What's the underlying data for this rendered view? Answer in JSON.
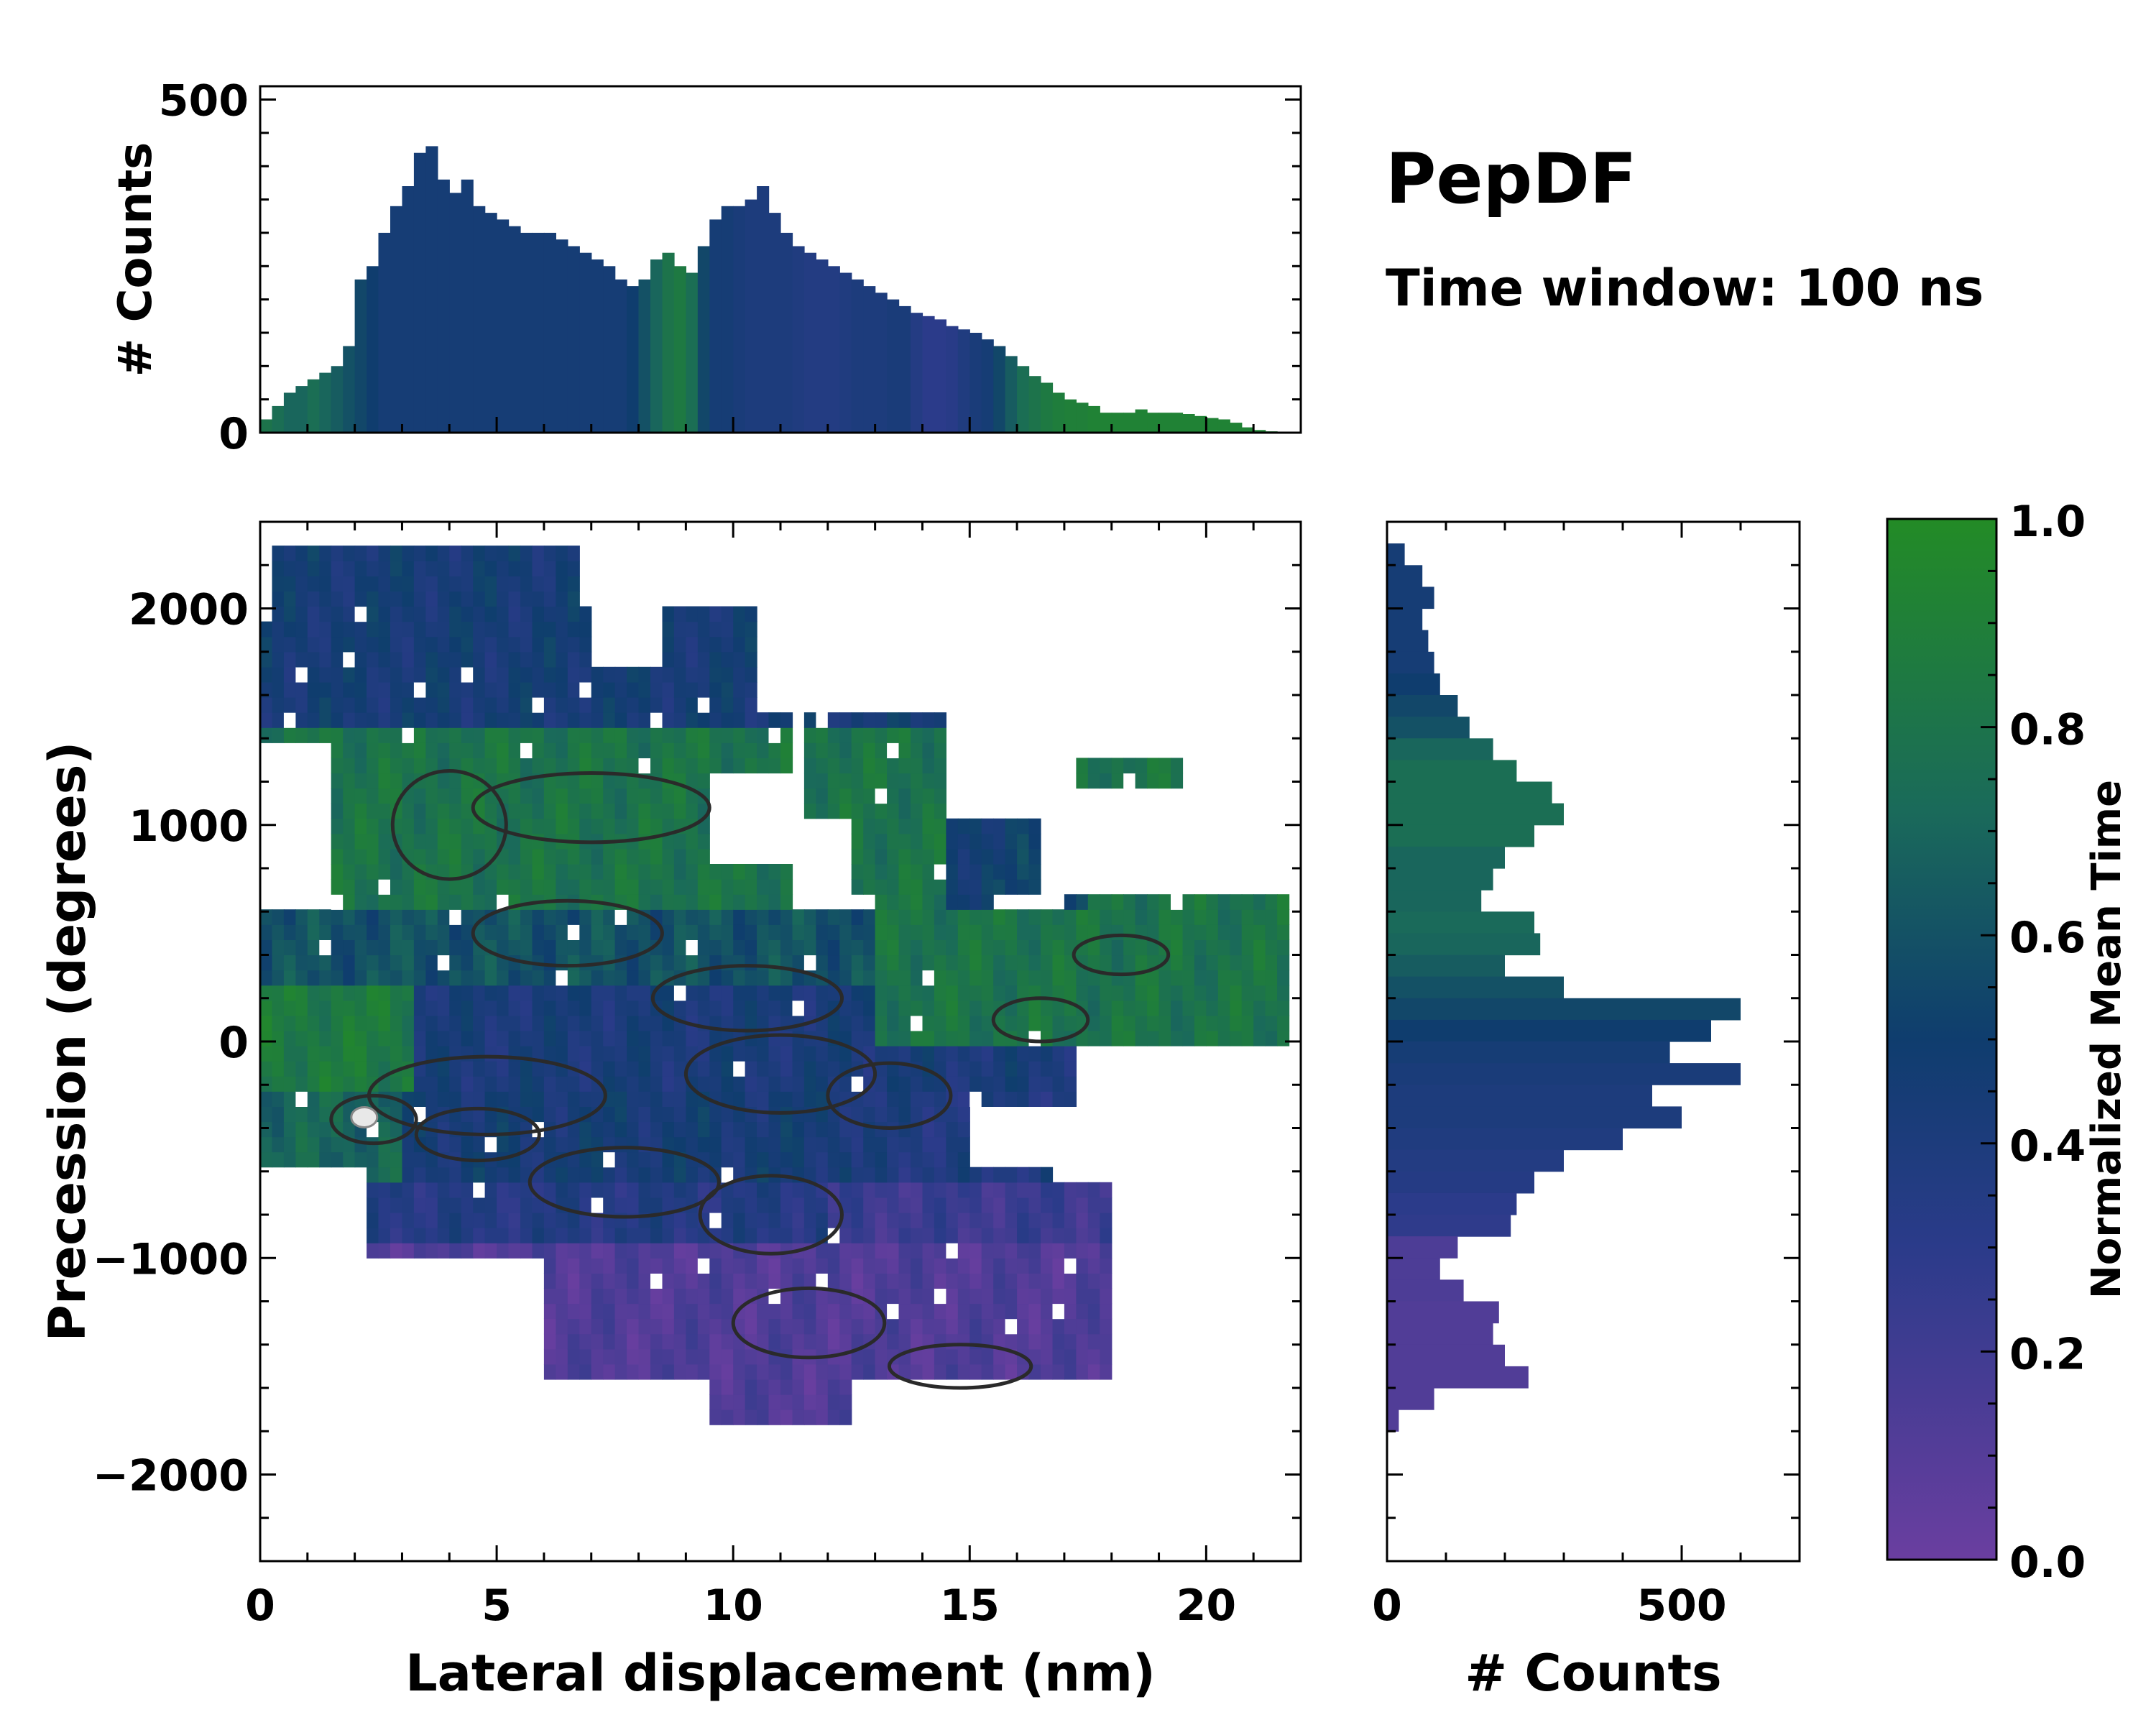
{
  "chart_data": [
    {
      "id": "joint",
      "type": "heatmap",
      "xlabel": "Lateral displacement (nm)",
      "ylabel": "Precession (degrees)",
      "xlim": [
        0,
        22
      ],
      "ylim": [
        -2400,
        2400
      ],
      "xticks": [
        0,
        5,
        10,
        15,
        20
      ],
      "xtick_labels": [
        "0",
        "5",
        "10",
        "15",
        "20"
      ],
      "yticks": [
        -2000,
        -1000,
        0,
        1000,
        2000
      ],
      "ytick_labels": [
        "−2000",
        "−1000",
        "0",
        "1000",
        "2000"
      ],
      "regions": [
        {
          "name": "upper-left blob",
          "x": [
            0,
            10.5
          ],
          "y": [
            1300,
            2350
          ],
          "mean_time": 0.45
        },
        {
          "name": "upper-middle green band",
          "x": [
            1.5,
            11.5
          ],
          "y": [
            600,
            1500
          ],
          "mean_time": 0.8
        },
        {
          "name": "right green lobe",
          "x": [
            11,
            21.8
          ],
          "y": [
            0,
            1600
          ],
          "mean_time": 0.8
        },
        {
          "name": "central band",
          "x": [
            0,
            17.5
          ],
          "y": [
            -900,
            600
          ],
          "mean_time": 0.4
        },
        {
          "name": "lower purple blob",
          "x": [
            6,
            18
          ],
          "y": [
            -1800,
            -700
          ],
          "mean_time": 0.1
        }
      ],
      "density_peak": {
        "x": 2.2,
        "y": -350
      }
    },
    {
      "id": "top-marginal",
      "type": "bar",
      "ylabel": "# Counts",
      "xlim": [
        0,
        22
      ],
      "ylim": [
        0,
        520
      ],
      "yticks": [
        0,
        500
      ],
      "ytick_labels": [
        "0",
        "500"
      ],
      "x": [
        0.25,
        0.5,
        0.75,
        1.0,
        1.25,
        1.5,
        1.75,
        2.0,
        2.25,
        2.5,
        2.75,
        3.0,
        3.25,
        3.5,
        3.75,
        4.0,
        4.25,
        4.5,
        4.75,
        5.0,
        5.25,
        5.5,
        5.75,
        6.0,
        6.25,
        6.5,
        6.75,
        7.0,
        7.25,
        7.5,
        7.75,
        8.0,
        8.25,
        8.5,
        8.75,
        9.0,
        9.25,
        9.5,
        9.75,
        10.0,
        10.25,
        10.5,
        10.75,
        11.0,
        11.25,
        11.5,
        11.75,
        12.0,
        12.25,
        12.5,
        12.75,
        13.0,
        13.25,
        13.5,
        13.75,
        14.0,
        14.25,
        14.5,
        14.75,
        15.0,
        15.25,
        15.5,
        15.75,
        16.0,
        16.25,
        16.5,
        16.75,
        17.0,
        17.25,
        17.5,
        17.75,
        18.0,
        18.25,
        18.5,
        18.75,
        19.0,
        19.25,
        19.5,
        19.75,
        20.0,
        20.25,
        20.5,
        20.75,
        21.0,
        21.25,
        21.5
      ],
      "values": [
        20,
        40,
        60,
        70,
        80,
        90,
        100,
        130,
        230,
        250,
        300,
        340,
        370,
        420,
        430,
        380,
        360,
        380,
        340,
        330,
        320,
        310,
        300,
        300,
        300,
        290,
        280,
        270,
        260,
        250,
        230,
        220,
        230,
        260,
        270,
        250,
        240,
        280,
        320,
        340,
        340,
        350,
        370,
        330,
        300,
        280,
        270,
        260,
        250,
        240,
        230,
        220,
        210,
        200,
        190,
        180,
        175,
        170,
        160,
        155,
        150,
        140,
        130,
        115,
        100,
        85,
        75,
        60,
        50,
        45,
        40,
        30,
        30,
        30,
        35,
        30,
        30,
        30,
        28,
        25,
        22,
        20,
        15,
        8,
        4,
        2
      ],
      "colors": [
        0.8,
        0.75,
        0.7,
        0.7,
        0.75,
        0.7,
        0.65,
        0.6,
        0.55,
        0.5,
        0.45,
        0.45,
        0.45,
        0.45,
        0.45,
        0.45,
        0.45,
        0.45,
        0.45,
        0.45,
        0.45,
        0.45,
        0.45,
        0.45,
        0.45,
        0.45,
        0.45,
        0.45,
        0.45,
        0.45,
        0.45,
        0.5,
        0.6,
        0.7,
        0.8,
        0.85,
        0.75,
        0.55,
        0.45,
        0.45,
        0.42,
        0.4,
        0.4,
        0.4,
        0.4,
        0.38,
        0.36,
        0.36,
        0.36,
        0.38,
        0.4,
        0.4,
        0.4,
        0.42,
        0.42,
        0.35,
        0.3,
        0.3,
        0.32,
        0.38,
        0.42,
        0.45,
        0.55,
        0.65,
        0.75,
        0.8,
        0.85,
        0.88,
        0.9,
        0.9,
        0.92,
        0.92,
        0.92,
        0.92,
        0.92,
        0.92,
        0.92,
        0.92,
        0.92,
        0.92,
        0.92,
        0.92,
        0.92,
        0.92,
        0.92,
        0.92
      ]
    },
    {
      "id": "right-marginal",
      "type": "barh",
      "xlabel": "# Counts",
      "xlim": [
        0,
        700
      ],
      "ylim": [
        -2400,
        2400
      ],
      "xticks": [
        0,
        500
      ],
      "xtick_labels": [
        "0",
        "500"
      ],
      "y": [
        2250,
        2150,
        2050,
        1950,
        1850,
        1750,
        1650,
        1550,
        1450,
        1350,
        1250,
        1150,
        1050,
        950,
        850,
        750,
        650,
        550,
        450,
        350,
        250,
        150,
        50,
        -50,
        -150,
        -250,
        -350,
        -450,
        -550,
        -650,
        -750,
        -850,
        -950,
        -1050,
        -1150,
        -1250,
        -1350,
        -1450,
        -1550,
        -1650,
        -1750
      ],
      "values": [
        30,
        60,
        80,
        60,
        70,
        80,
        90,
        120,
        140,
        180,
        220,
        280,
        300,
        250,
        200,
        180,
        160,
        250,
        260,
        200,
        300,
        600,
        550,
        480,
        600,
        450,
        500,
        400,
        300,
        250,
        220,
        210,
        120,
        90,
        130,
        190,
        180,
        200,
        240,
        80,
        20
      ],
      "colors": [
        0.45,
        0.45,
        0.45,
        0.45,
        0.45,
        0.45,
        0.5,
        0.55,
        0.6,
        0.7,
        0.75,
        0.75,
        0.75,
        0.75,
        0.7,
        0.7,
        0.7,
        0.72,
        0.7,
        0.65,
        0.6,
        0.55,
        0.5,
        0.45,
        0.42,
        0.4,
        0.4,
        0.38,
        0.36,
        0.34,
        0.3,
        0.28,
        0.14,
        0.14,
        0.14,
        0.12,
        0.12,
        0.12,
        0.12,
        0.12,
        0.12
      ]
    }
  ],
  "annotations": {
    "title": "PepDF",
    "subtitle": "Time window: 100 ns"
  },
  "colorbar": {
    "label": "Normalized Mean Time",
    "ticks": [
      0.0,
      0.2,
      0.4,
      0.6,
      0.8,
      1.0
    ],
    "tick_labels": [
      "0.0",
      "0.2",
      "0.4",
      "0.6",
      "0.8",
      "1.0"
    ],
    "stops": [
      "#6a3ea0",
      "#2b3b8a",
      "#0f3d6e",
      "#1a6a5a",
      "#238b26"
    ]
  }
}
